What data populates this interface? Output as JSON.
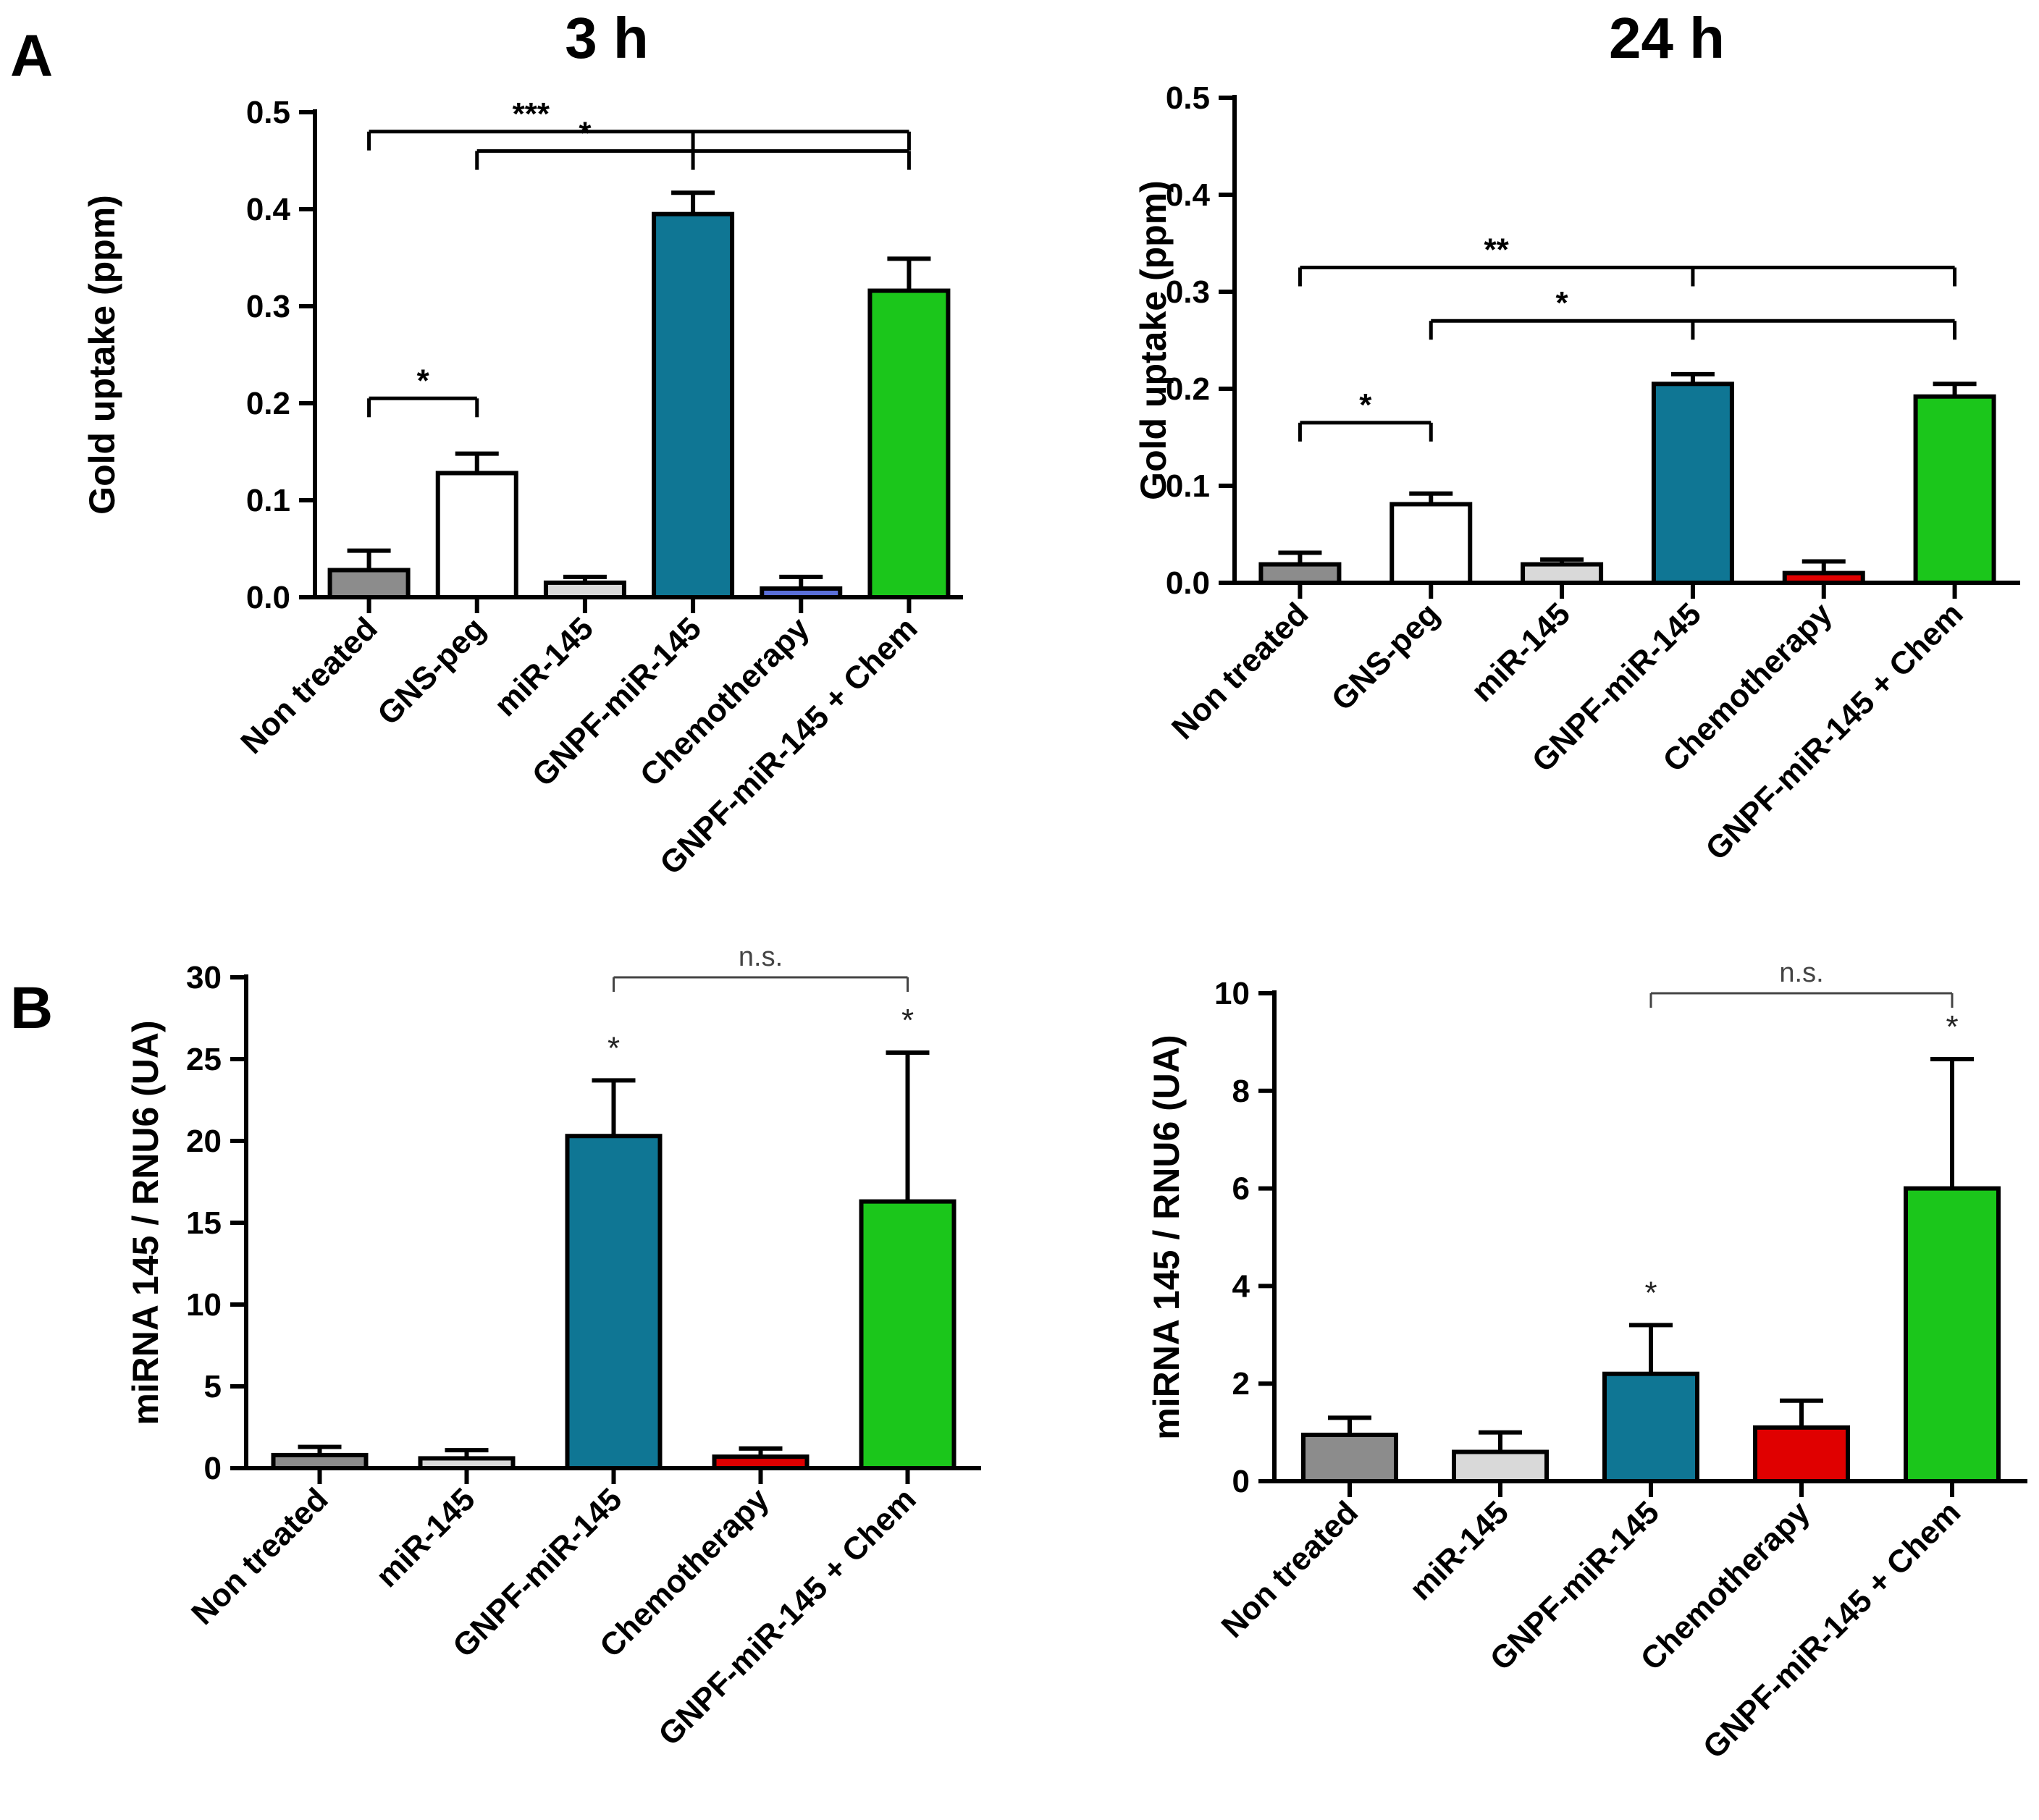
{
  "panels": {
    "A": "A",
    "B": "B"
  },
  "chart_data": [
    {
      "id": "A-3h",
      "type": "bar",
      "title": "3 h",
      "xlabel": "",
      "ylabel": "Gold uptake (ppm)",
      "ylim": [
        0,
        0.5
      ],
      "yticks": [
        0.0,
        0.1,
        0.2,
        0.3,
        0.4,
        0.5
      ],
      "ytick_labels": [
        "0.0",
        "0.1",
        "0.2",
        "0.3",
        "0.4",
        "0.5"
      ],
      "categories": [
        "Non treated",
        "GNS-peg",
        "miR-145",
        "GNPF-miR-145",
        "Chemotherapy",
        "GNPF-miR-145 + Chem"
      ],
      "values": [
        0.028,
        0.128,
        0.015,
        0.395,
        0.009,
        0.316
      ],
      "errors": [
        0.02,
        0.02,
        0.006,
        0.022,
        0.012,
        0.033
      ],
      "colors": [
        "#8c8c8c",
        "#ffffff",
        "#d9d9d9",
        "#0f7694",
        "#5a6fd8",
        "#1bc61b"
      ],
      "significance": [
        {
          "label": "***",
          "from": 0,
          "to": [
            3,
            5
          ],
          "y": 0.48
        },
        {
          "label": "*",
          "from": 1,
          "to": [
            3,
            5
          ],
          "y": 0.46
        },
        {
          "label": "*",
          "from": 0,
          "to": [
            1
          ],
          "y": 0.205
        }
      ]
    },
    {
      "id": "A-24h",
      "type": "bar",
      "title": "24 h",
      "xlabel": "",
      "ylabel": "Gold uptake (ppm)",
      "ylim": [
        0,
        0.5
      ],
      "yticks": [
        0.0,
        0.1,
        0.2,
        0.3,
        0.4,
        0.5
      ],
      "ytick_labels": [
        "0.0",
        "0.1",
        "0.2",
        "0.3",
        "0.4",
        "0.5"
      ],
      "categories": [
        "Non treated",
        "GNS-peg",
        "miR-145",
        "GNPF-miR-145",
        "Chemotherapy",
        "GNPF-miR-145 + Chem"
      ],
      "values": [
        0.019,
        0.081,
        0.019,
        0.205,
        0.01,
        0.192
      ],
      "errors": [
        0.012,
        0.011,
        0.005,
        0.01,
        0.012,
        0.013
      ],
      "colors": [
        "#8c8c8c",
        "#ffffff",
        "#d9d9d9",
        "#0f7694",
        "#e00000",
        "#1bc61b"
      ],
      "significance": [
        {
          "label": "**",
          "from": 0,
          "to": [
            3,
            5
          ],
          "y": 0.325
        },
        {
          "label": "*",
          "from": 1,
          "to": [
            3,
            5
          ],
          "y": 0.27
        },
        {
          "label": "*",
          "from": 0,
          "to": [
            1
          ],
          "y": 0.165
        }
      ]
    },
    {
      "id": "B-left",
      "type": "bar",
      "title": "",
      "xlabel": "",
      "ylabel": "miRNA 145 / RNU6 (UA)",
      "ylim": [
        0,
        30
      ],
      "yticks": [
        0,
        5,
        10,
        15,
        20,
        25,
        30
      ],
      "ytick_labels": [
        "0",
        "5",
        "10",
        "15",
        "20",
        "25",
        "30"
      ],
      "categories": [
        "Non treated",
        "miR-145",
        "GNPF-miR-145",
        "Chemotherapy",
        "GNPF-miR-145 + Chem"
      ],
      "values": [
        0.8,
        0.6,
        20.3,
        0.7,
        16.3
      ],
      "errors": [
        0.5,
        0.5,
        3.4,
        0.5,
        9.1
      ],
      "colors": [
        "#8c8c8c",
        "#d9d9d9",
        "#0f7694",
        "#e00000",
        "#1bc61b"
      ],
      "bar_stars": [
        "",
        "",
        "*",
        "",
        "*"
      ],
      "significance": [
        {
          "label": "n.s.",
          "from": 2,
          "to": [
            4
          ],
          "y": 30.0,
          "light": true
        }
      ]
    },
    {
      "id": "B-right",
      "type": "bar",
      "title": "",
      "xlabel": "",
      "ylabel": "miRNA 145 / RNU6 (UA)",
      "ylim": [
        0,
        10
      ],
      "yticks": [
        0,
        2,
        4,
        6,
        8,
        10
      ],
      "ytick_labels": [
        "0",
        "2",
        "4",
        "6",
        "8",
        "10"
      ],
      "categories": [
        "Non treated",
        "miR-145",
        "GNPF-miR-145",
        "Chemotherapy",
        "GNPF-miR-145 + Chem"
      ],
      "values": [
        0.95,
        0.6,
        2.2,
        1.1,
        6.0
      ],
      "errors": [
        0.35,
        0.4,
        1.0,
        0.55,
        2.65
      ],
      "colors": [
        "#8c8c8c",
        "#d9d9d9",
        "#0f7694",
        "#e00000",
        "#1bc61b"
      ],
      "bar_stars": [
        "",
        "",
        "*",
        "",
        "*"
      ],
      "significance": [
        {
          "label": "n.s.",
          "from": 2,
          "to": [
            4
          ],
          "y": 10.0,
          "light": true
        }
      ]
    }
  ]
}
